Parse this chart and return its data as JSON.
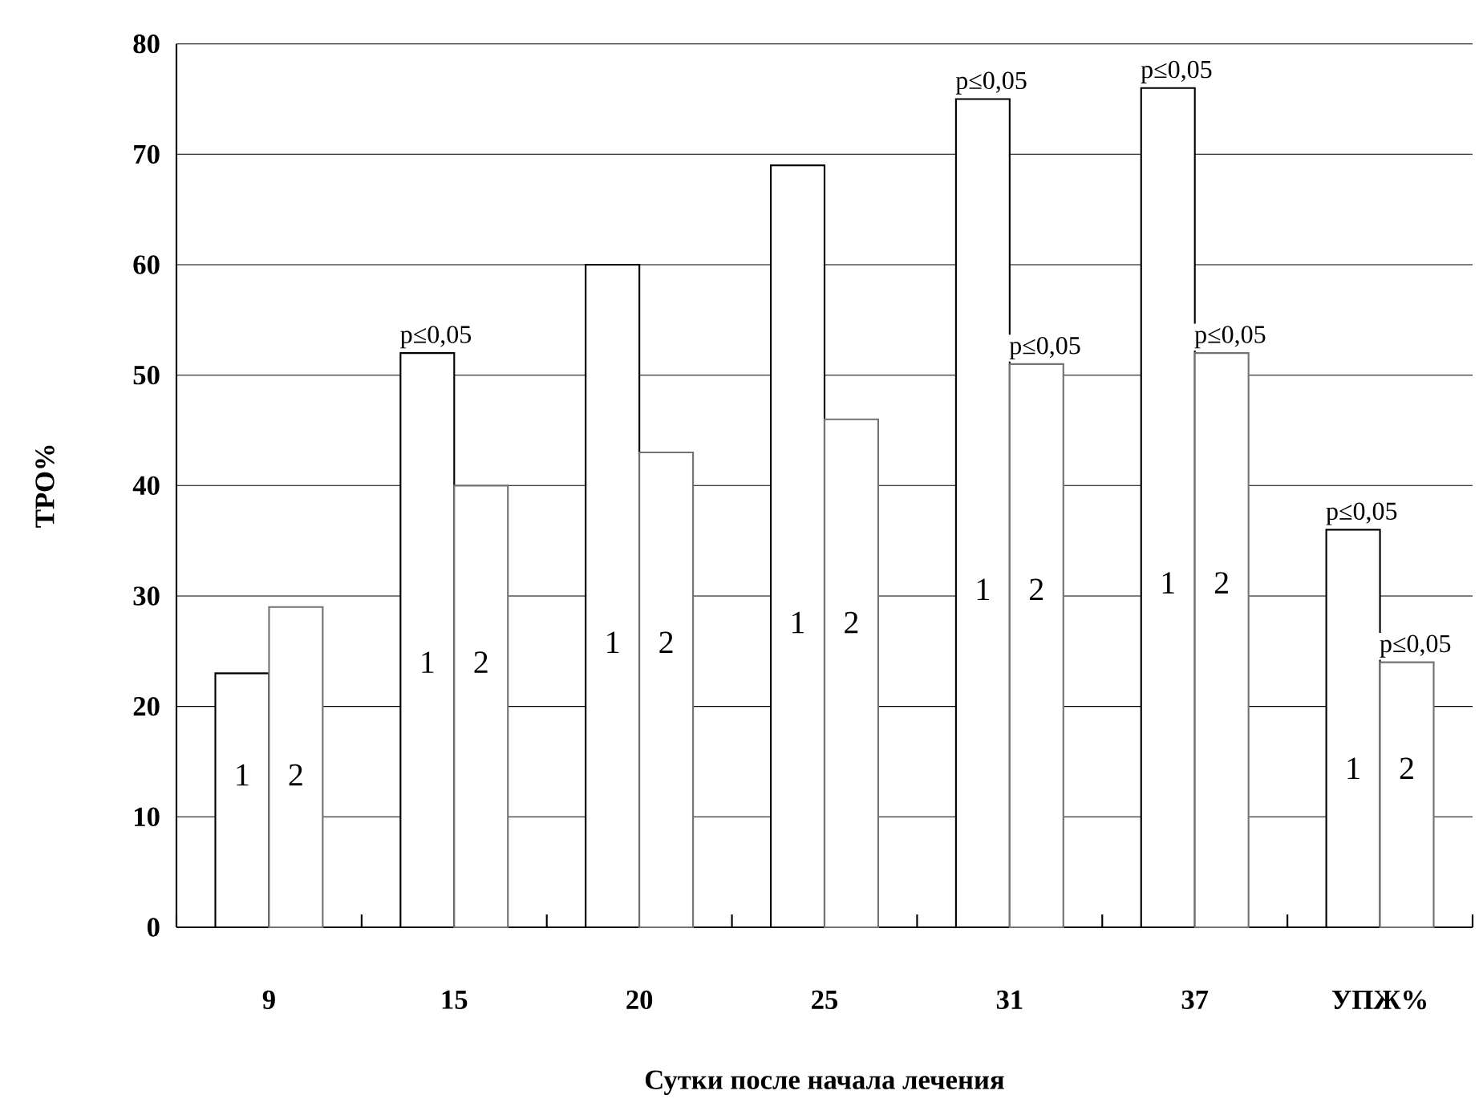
{
  "chart_data": {
    "type": "bar",
    "xlabel": "Сутки после начала лечения",
    "ylabel": "ТРО%",
    "categories": [
      "9",
      "15",
      "20",
      "25",
      "31",
      "37",
      "УПЖ%"
    ],
    "series": [
      {
        "name": "1",
        "color": "#ffffff",
        "values": [
          23,
          52,
          60,
          69,
          75,
          76,
          36
        ]
      },
      {
        "name": "2",
        "color": "#ffffff",
        "values": [
          29,
          40,
          43,
          46,
          51,
          52,
          24
        ]
      }
    ],
    "ylim": [
      0,
      80
    ],
    "yticks": [
      0,
      10,
      20,
      30,
      40,
      50,
      60,
      70,
      80
    ],
    "grid": "y",
    "legend": false,
    "annotations": [
      {
        "text": "p≤0,05",
        "x": "15",
        "y": 52
      },
      {
        "text": "p≤0,05",
        "x": "31",
        "y": 75
      },
      {
        "text": "p≤0,05",
        "x": "31",
        "y": 51
      },
      {
        "text": "p≤0,05",
        "x": "37",
        "y": 76
      },
      {
        "text": "p≤0,05",
        "x": "37",
        "y": 52
      },
      {
        "text": "p≤0,05",
        "x": "УПЖ%",
        "y": 36
      },
      {
        "text": "p≤0,05",
        "x": "УПЖ%",
        "y": 24
      }
    ]
  }
}
